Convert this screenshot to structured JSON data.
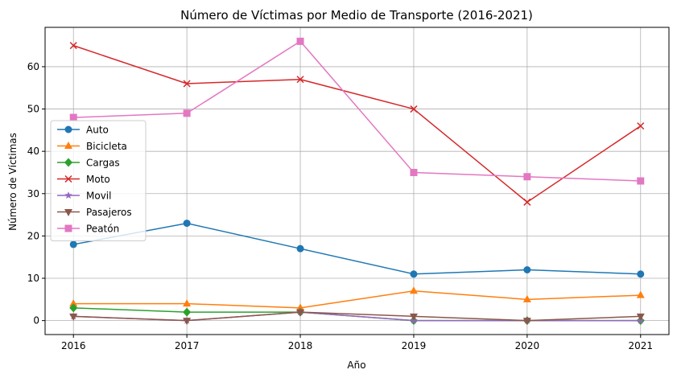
{
  "chart_data": {
    "type": "line",
    "title": "Número de Víctimas por Medio de Transporte (2016-2021)",
    "xlabel": "Año",
    "ylabel": "Número de Víctimas",
    "x": [
      2016,
      2017,
      2018,
      2019,
      2020,
      2021
    ],
    "x_tick_labels": [
      "2016",
      "2017",
      "2018",
      "2019",
      "2020",
      "2021"
    ],
    "y_ticks": [
      0,
      10,
      20,
      30,
      40,
      50,
      60
    ],
    "y_tick_labels": [
      "0",
      "10",
      "20",
      "30",
      "40",
      "50",
      "60"
    ],
    "xlim": [
      2015.75,
      2021.25
    ],
    "ylim": [
      -3.3,
      69.3
    ],
    "grid": true,
    "legend_position": "center-left",
    "series": [
      {
        "name": "Auto",
        "color": "#1f77b4",
        "marker": "circle",
        "values": [
          18,
          23,
          17,
          11,
          12,
          11
        ]
      },
      {
        "name": "Bicicleta",
        "color": "#ff7f0e",
        "marker": "triangle-up",
        "values": [
          4,
          4,
          3,
          7,
          5,
          6
        ]
      },
      {
        "name": "Cargas",
        "color": "#2ca02c",
        "marker": "diamond",
        "values": [
          3,
          2,
          2,
          0,
          0,
          0
        ]
      },
      {
        "name": "Moto",
        "color": "#d62728",
        "marker": "x",
        "values": [
          65,
          56,
          57,
          50,
          28,
          46
        ]
      },
      {
        "name": "Movil",
        "color": "#9467bd",
        "marker": "star",
        "values": [
          1,
          0,
          2,
          0,
          0,
          0
        ]
      },
      {
        "name": "Pasajeros",
        "color": "#8c564b",
        "marker": "triangle-down",
        "values": [
          1,
          0,
          2,
          1,
          0,
          1
        ]
      },
      {
        "name": "Peatón",
        "color": "#e377c2",
        "marker": "square",
        "values": [
          48,
          49,
          66,
          35,
          34,
          33
        ]
      }
    ]
  }
}
